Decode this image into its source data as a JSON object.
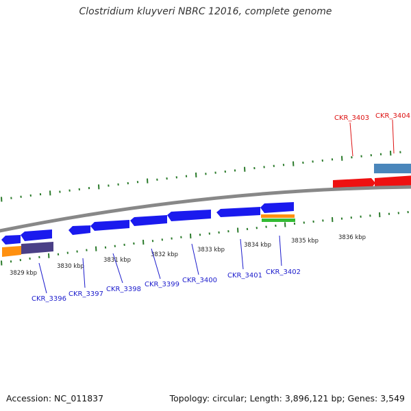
{
  "title": "Clostridium kluyveri NBRC 12016, complete genome",
  "footer": {
    "accession": "Accession: NC_011837",
    "summary": "Topology: circular; Length: 3,896,121 bp; Genes: 3,549"
  },
  "colors": {
    "reverse_gene": "#1a1aee",
    "forward_gene": "#ee1111",
    "forward_other": "#4a86bb",
    "reverse_orange": "#ff9010",
    "reverse_green": "#33bb33",
    "reverse_purple": "#4a3f86",
    "tick": "#2a7a2a",
    "backbone": "#888888",
    "label_reverse": "#1a1acc",
    "label_forward": "#dd1111"
  },
  "scale_labels": [
    "3829 kbp",
    "3830 kbp",
    "3831 kbp",
    "3832 kbp",
    "3833 kbp",
    "3834 kbp",
    "3835 kbp",
    "3836 kbp"
  ],
  "gene_labels": [
    {
      "name": "CKR_3396",
      "strand": "reverse"
    },
    {
      "name": "CKR_3397",
      "strand": "reverse"
    },
    {
      "name": "CKR_3398",
      "strand": "reverse"
    },
    {
      "name": "CKR_3399",
      "strand": "reverse"
    },
    {
      "name": "CKR_3400",
      "strand": "reverse"
    },
    {
      "name": "CKR_3401",
      "strand": "reverse"
    },
    {
      "name": "CKR_3402",
      "strand": "reverse"
    },
    {
      "name": "CKR_3403",
      "strand": "forward"
    },
    {
      "name": "CKR_3404",
      "strand": "forward"
    }
  ]
}
